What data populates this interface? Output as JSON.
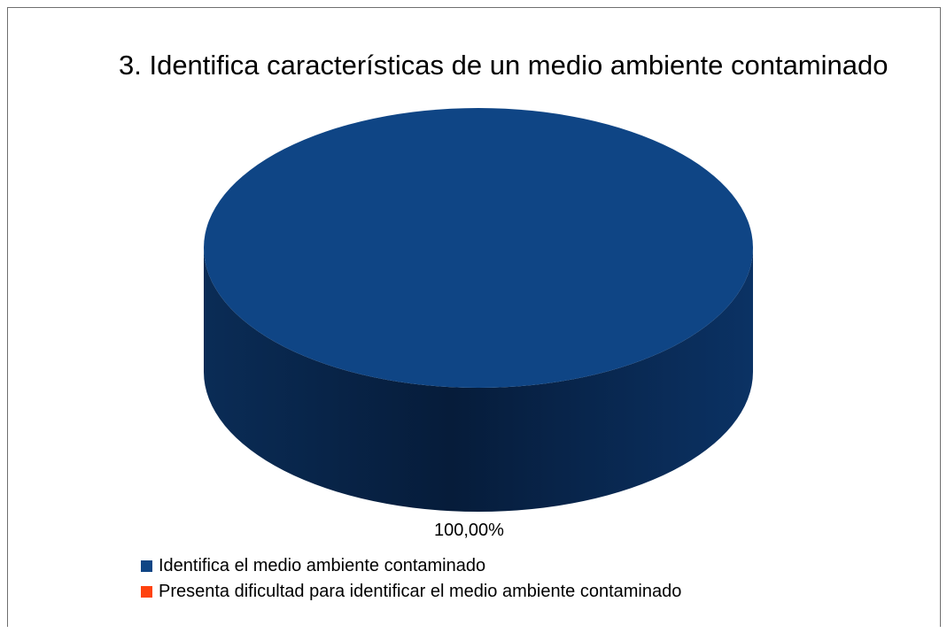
{
  "chart_data": {
    "type": "pie",
    "title": "3. Identifica características de un medio ambiente contaminado",
    "categories": [
      "Identifica el medio ambiente contaminado",
      "Presenta dificultad para identificar el medio ambiente contaminado"
    ],
    "values": [
      100,
      0
    ],
    "data_labels": [
      "100,00%"
    ],
    "colors": [
      "#0f4585",
      "#ff420e"
    ],
    "legend_position": "bottom-left",
    "three_d": true
  }
}
